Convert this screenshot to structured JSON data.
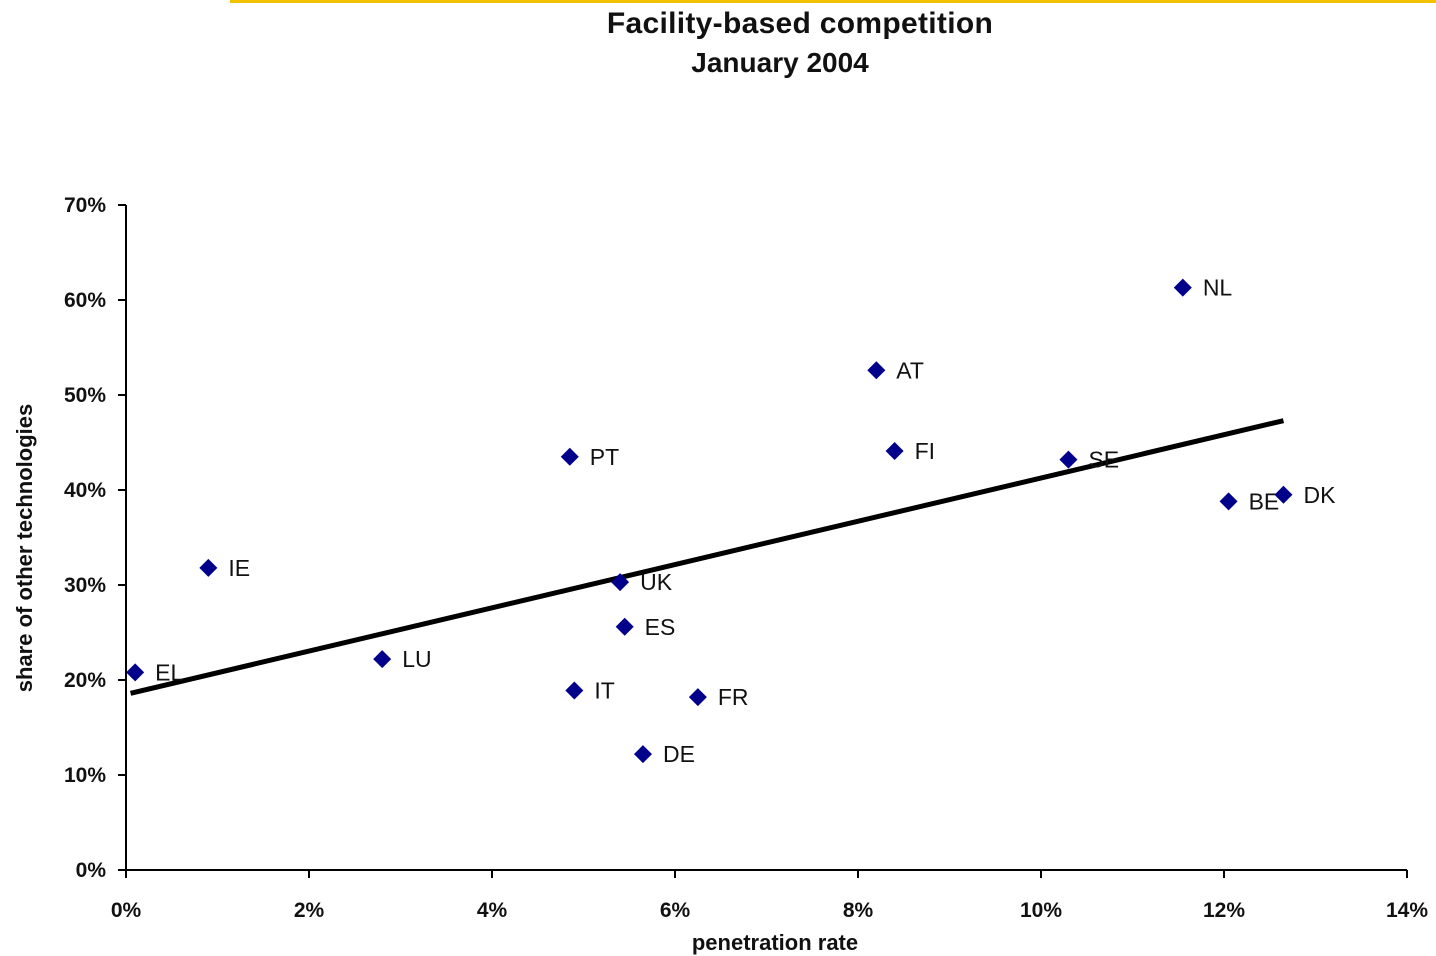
{
  "chart_data": {
    "type": "scatter",
    "title": "Facility-based competition",
    "subtitle": "January 2004",
    "xlabel": "penetration rate",
    "ylabel": "share of other technologies",
    "xlim": [
      0,
      14
    ],
    "ylim": [
      0,
      70
    ],
    "x_ticks": [
      0,
      2,
      4,
      6,
      8,
      10,
      12,
      14
    ],
    "y_ticks": [
      0,
      10,
      20,
      30,
      40,
      50,
      60,
      70
    ],
    "x_tick_labels": [
      "0%",
      "2%",
      "4%",
      "6%",
      "8%",
      "10%",
      "12%",
      "14%"
    ],
    "y_tick_labels": [
      "0%",
      "10%",
      "20%",
      "30%",
      "40%",
      "50%",
      "60%",
      "70%"
    ],
    "grid": false,
    "marker": "diamond",
    "marker_color": "#00008b",
    "points": [
      {
        "label": "EL",
        "x": 0.1,
        "y": 20.8
      },
      {
        "label": "IE",
        "x": 0.9,
        "y": 31.8
      },
      {
        "label": "LU",
        "x": 2.8,
        "y": 22.2
      },
      {
        "label": "PT",
        "x": 4.85,
        "y": 43.5
      },
      {
        "label": "IT",
        "x": 4.9,
        "y": 18.9
      },
      {
        "label": "UK",
        "x": 5.4,
        "y": 30.3
      },
      {
        "label": "ES",
        "x": 5.45,
        "y": 25.6
      },
      {
        "label": "DE",
        "x": 5.65,
        "y": 12.2
      },
      {
        "label": "FR",
        "x": 6.25,
        "y": 18.2
      },
      {
        "label": "AT",
        "x": 8.2,
        "y": 52.6
      },
      {
        "label": "FI",
        "x": 8.4,
        "y": 44.1
      },
      {
        "label": "SE",
        "x": 10.3,
        "y": 43.2
      },
      {
        "label": "NL",
        "x": 11.55,
        "y": 61.3
      },
      {
        "label": "BE",
        "x": 12.05,
        "y": 38.8
      },
      {
        "label": "DK",
        "x": 12.65,
        "y": 39.5
      }
    ],
    "trendline": {
      "x": [
        0.05,
        12.65
      ],
      "y": [
        18.6,
        47.3
      ],
      "color": "#000000"
    }
  }
}
